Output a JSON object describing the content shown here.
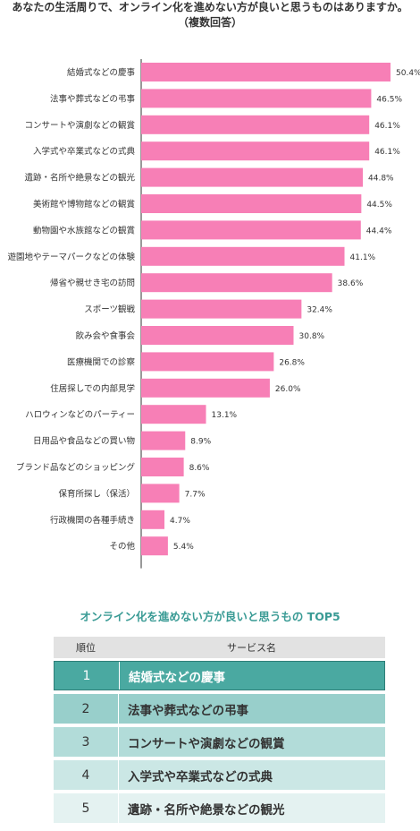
{
  "chart_data": {
    "type": "bar",
    "orientation": "horizontal",
    "title": "あなたの生活周りで、オンライン化を進めない方が良いと思うものはありますか。\n（複数回答）",
    "categories": [
      "結婚式などの慶事",
      "法事や葬式などの弔事",
      "コンサートや演劇などの観賞",
      "入学式や卒業式などの式典",
      "遺跡・名所や絶景などの観光",
      "美術館や博物館などの観賞",
      "動物園や水族館などの観賞",
      "遊園地やテーマパークなどの体験",
      "帰省や親せき宅の訪問",
      "スポーツ観戦",
      "飲み会や食事会",
      "医療機関での診察",
      "住居探しでの内部見学",
      "ハロウィンなどのパーティー",
      "日用品や食品などの買い物",
      "ブランド品などのショッピング",
      "保育所探し（保活）",
      "行政機関の各種手続き",
      "その他"
    ],
    "values": [
      50.4,
      46.5,
      46.1,
      46.1,
      44.8,
      44.5,
      44.4,
      41.1,
      38.6,
      32.4,
      30.8,
      26.8,
      26.0,
      13.1,
      8.9,
      8.6,
      7.7,
      4.7,
      5.4
    ],
    "value_labels": [
      "50.4%",
      "46.5%",
      "46.1%",
      "46.1%",
      "44.8%",
      "44.5%",
      "44.4%",
      "41.1%",
      "38.6%",
      "32.4%",
      "30.8%",
      "26.8%",
      "26.0%",
      "13.1%",
      "8.9%",
      "8.6%",
      "7.7%",
      "4.7%",
      "5.4%"
    ],
    "xlim": [
      0,
      50.4
    ],
    "grid": false,
    "legend": "none",
    "bar_color": "#f77fb6"
  },
  "top5": {
    "title": "オンライン化を進めない方が良いと思うもの TOP5",
    "header": {
      "rank": "順位",
      "service": "サービス名"
    },
    "rows": [
      {
        "rank": "1",
        "name": "結婚式などの慶事",
        "color": "#4aa9a1"
      },
      {
        "rank": "2",
        "name": "法事や葬式などの弔事",
        "color": "#98cfcb"
      },
      {
        "rank": "3",
        "name": "コンサートや演劇などの観賞",
        "color": "#b2dcd9"
      },
      {
        "rank": "4",
        "name": "入学式や卒業式などの式典",
        "color": "#cbe7e5"
      },
      {
        "rank": "5",
        "name": "遺跡・名所や絶景などの観光",
        "color": "#e4f2f1"
      }
    ]
  }
}
